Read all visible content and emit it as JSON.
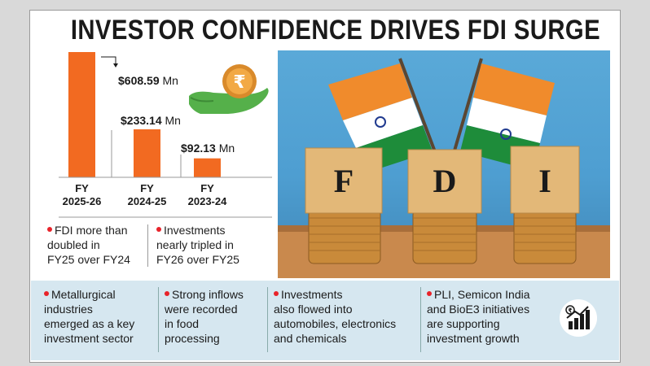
{
  "title": "INVESTOR CONFIDENCE DRIVES FDI SURGE",
  "chart_data": {
    "type": "bar",
    "categories": [
      "FY\n2025-26",
      "FY\n2024-25",
      "FY\n2023-24"
    ],
    "category_lines": [
      [
        "FY",
        "2025-26"
      ],
      [
        "FY",
        "2024-25"
      ],
      [
        "FY",
        "2023-24"
      ]
    ],
    "values": [
      608.59,
      233.14,
      92.13
    ],
    "value_labels": [
      "$608.59",
      "$233.14",
      "$92.13"
    ],
    "unit": "Mn",
    "bar_color": "#f26a21"
  },
  "notes": [
    {
      "lines": [
        "FDI more than",
        "doubled in",
        "FY25 over FY24"
      ]
    },
    {
      "lines": [
        "Investments",
        "nearly tripled in",
        "FY26 over FY25"
      ]
    }
  ],
  "bottom_notes": [
    {
      "lines": [
        "Metallurgical",
        "industries",
        "emerged as a key",
        "investment sector"
      ]
    },
    {
      "lines": [
        "Strong inflows",
        "were recorded",
        "in food",
        "processing"
      ]
    },
    {
      "lines": [
        "Investments",
        "also flowed into",
        "automobiles, electronics",
        "and chemicals"
      ]
    },
    {
      "lines": [
        "PLI, Semicon India",
        "and BioE3 initiatives",
        "are supporting",
        "investment growth"
      ]
    }
  ],
  "photo_letters": [
    "F",
    "D",
    "I"
  ],
  "icons": [
    "rupee-coin-hand-icon",
    "growth-chart-icon"
  ],
  "colors": {
    "accent": "#f26a21",
    "bullet": "#e8232a",
    "bottom_band": "#d6e7f0",
    "sky": "#4e9ed1"
  }
}
